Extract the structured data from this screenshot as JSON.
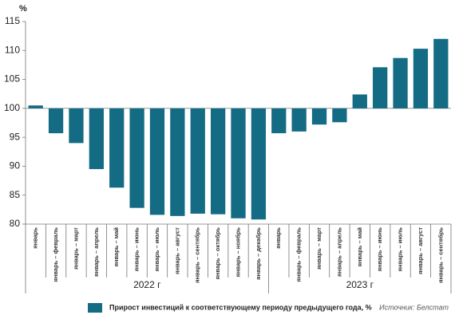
{
  "chart_data": {
    "type": "bar",
    "ylabel": "%",
    "color": "#136b84",
    "baseline": 100,
    "ylim": [
      80,
      115
    ],
    "yticks": [
      80,
      85,
      90,
      95,
      100,
      105,
      110,
      115
    ],
    "grid": false,
    "series_name": "Прирост инвестиций к соответствующему периоду предыдущего года, %",
    "source": "Источник: Белстат",
    "groups": [
      {
        "name": "2022 г",
        "categories": [
          "январь",
          "январь – февраль",
          "январь – март",
          "январь – апрель",
          "январь – май",
          "январь – июнь",
          "январь – июль",
          "январь – август",
          "январь – сентябрь",
          "январь – октябрь",
          "январь – ноябрь",
          "январь – декабрь"
        ],
        "values": [
          100.5,
          95.7,
          94.0,
          89.5,
          86.3,
          82.8,
          81.6,
          81.4,
          81.8,
          81.7,
          81.0,
          80.8
        ]
      },
      {
        "name": "2023 г",
        "categories": [
          "январь",
          "январь – февраль",
          "январь – март",
          "январь – апрель",
          "январь – май",
          "январь – июнь",
          "январь – июль",
          "январь – август",
          "январь – сентябрь"
        ],
        "values": [
          95.7,
          96.0,
          97.2,
          97.6,
          102.4,
          107.1,
          108.7,
          110.3,
          112.0
        ]
      }
    ]
  }
}
